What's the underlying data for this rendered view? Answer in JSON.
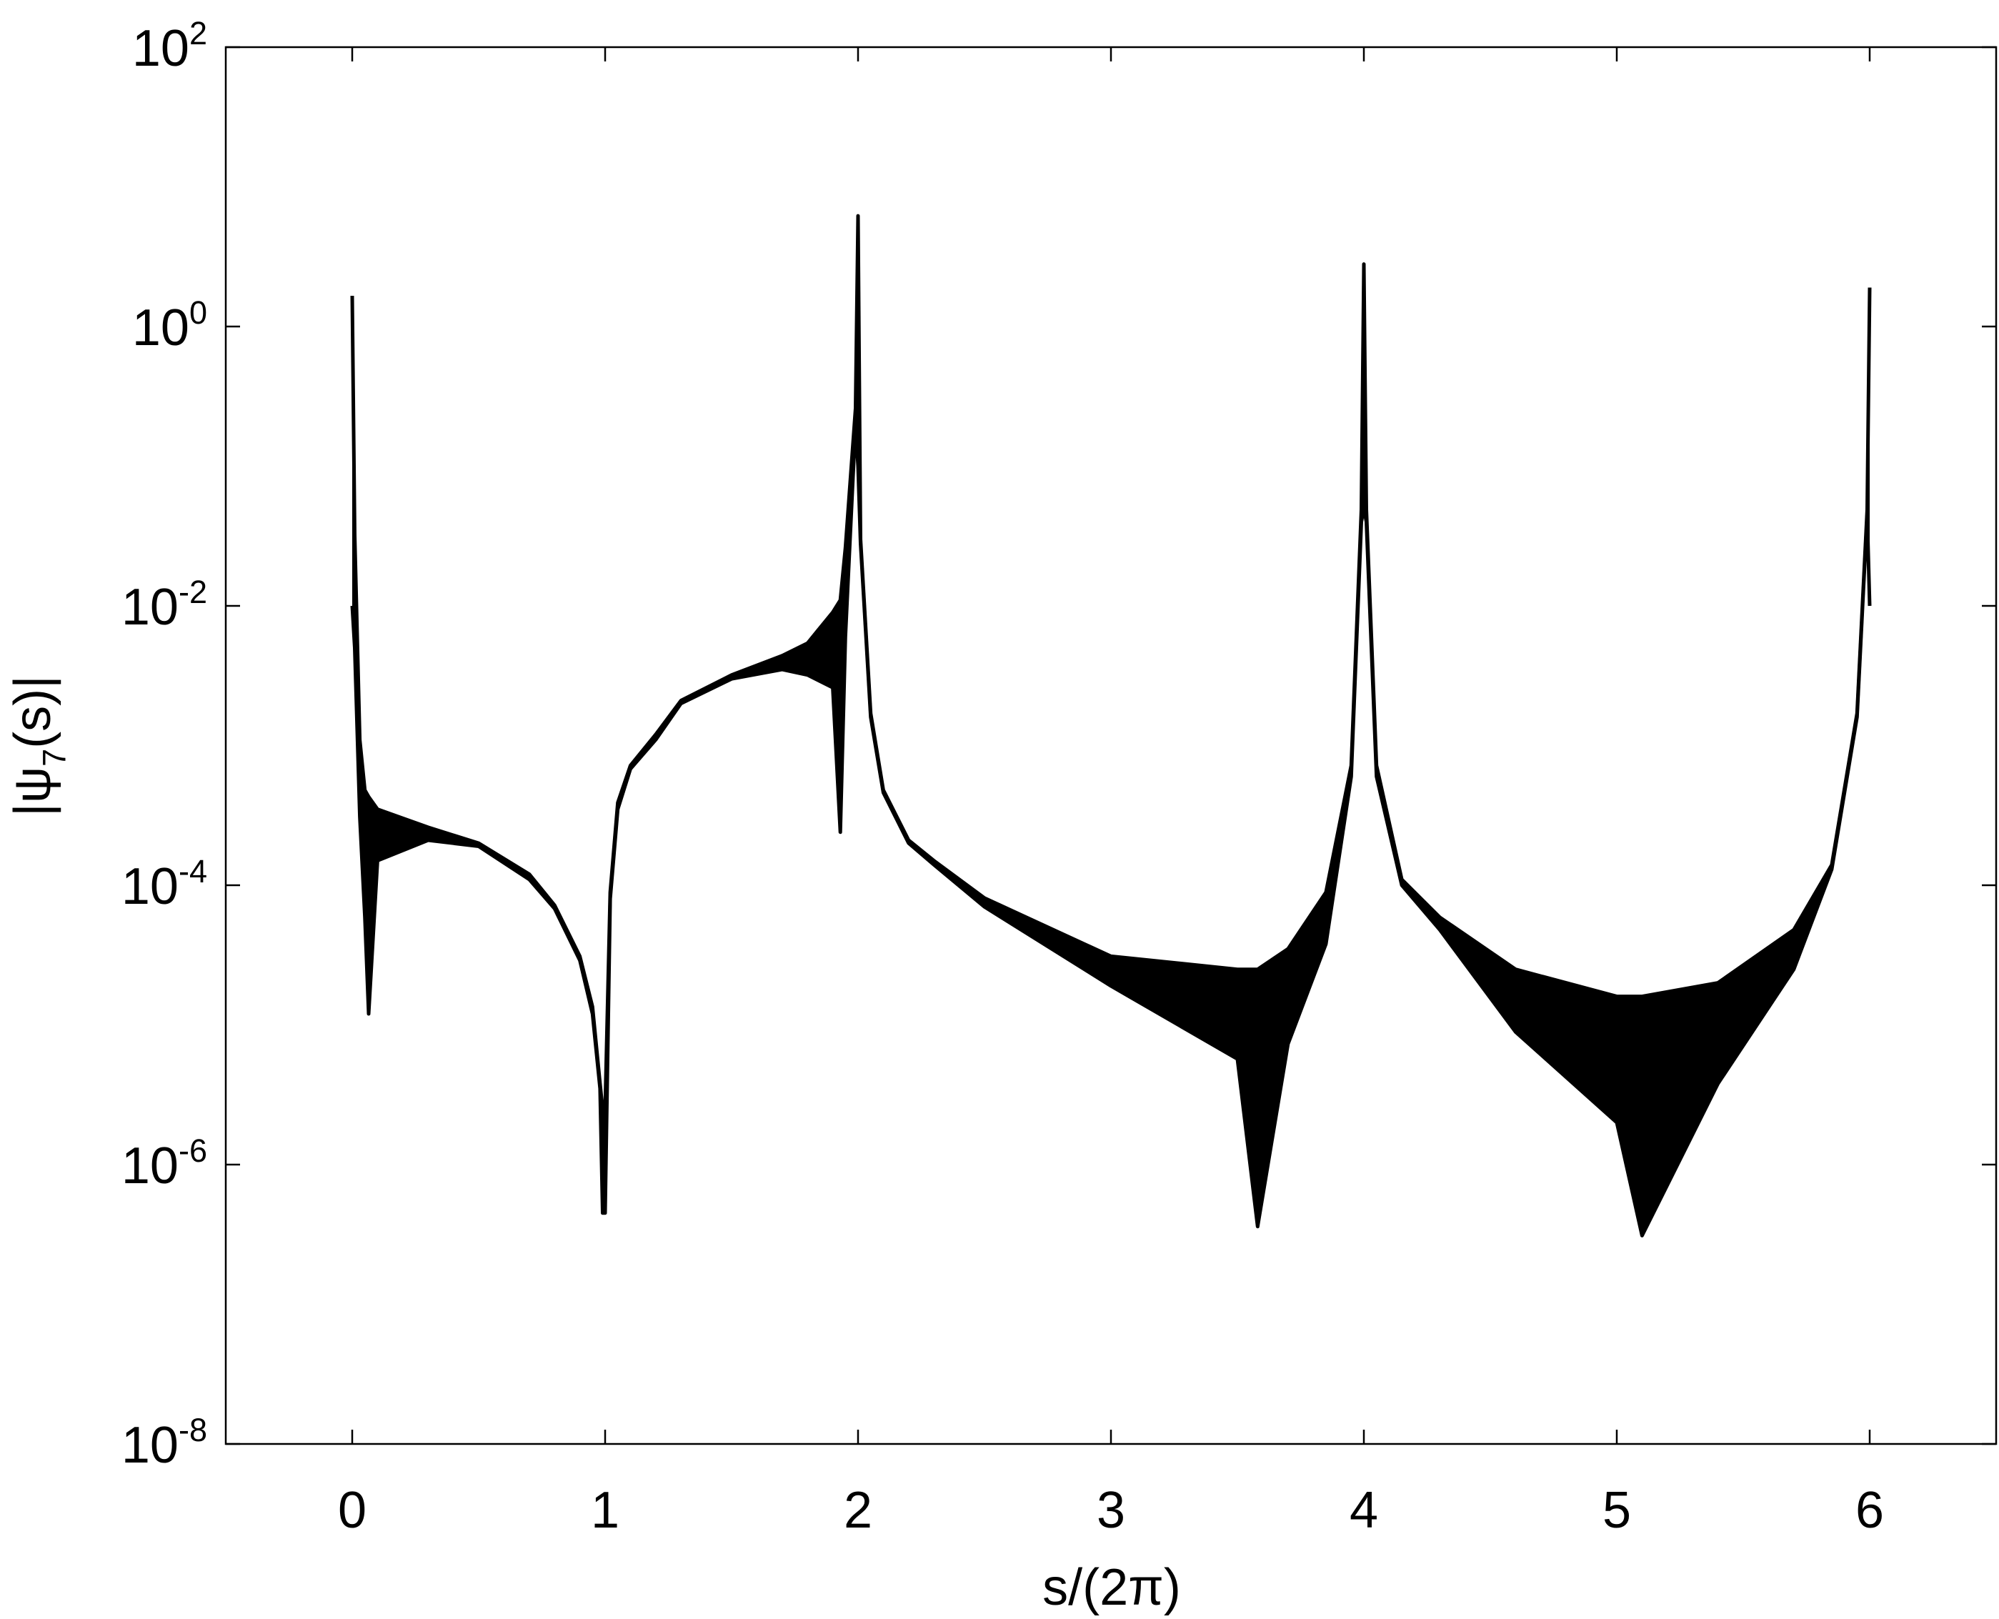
{
  "chart_data": {
    "type": "band",
    "xlabel": "s/(2π)",
    "ylabel": "|ψ_7(s)|",
    "xlim": [
      -0.5,
      6.5
    ],
    "xticks": [
      0,
      1,
      2,
      3,
      4,
      5,
      6
    ],
    "ylim": [
      1e-08,
      100
    ],
    "log_y": true,
    "yticks": [
      {
        "value": 1e-08,
        "label": "10^-8"
      },
      {
        "value": 1e-06,
        "label": "10^-6"
      },
      {
        "value": 0.0001,
        "label": "10^-4"
      },
      {
        "value": 0.01,
        "label": "10^-2"
      },
      {
        "value": 1,
        "label": "10^0"
      },
      {
        "value": 100,
        "label": "10^2"
      }
    ],
    "x": [
      0,
      0.01,
      0.03,
      0.05,
      0.065,
      0.1,
      0.3,
      0.5,
      0.7,
      0.8,
      0.9,
      0.95,
      0.98,
      0.99,
      1.0,
      1.02,
      1.05,
      1.1,
      1.2,
      1.3,
      1.5,
      1.7,
      1.8,
      1.9,
      1.93,
      1.95,
      1.99,
      2.0,
      2.01,
      2.05,
      2.1,
      2.2,
      2.3,
      2.5,
      3.0,
      3.5,
      3.58,
      3.7,
      3.85,
      3.95,
      3.99,
      4.0,
      4.01,
      4.05,
      4.15,
      4.3,
      4.6,
      5.0,
      5.1,
      5.4,
      5.7,
      5.85,
      5.95,
      5.99,
      6.0
    ],
    "series": [
      {
        "color": "#000000",
        "values": [
          1.66,
          0.032,
          0.0011,
          0.00048,
          0.00043,
          0.00035,
          0.00026,
          0.0002,
          0.00012,
          7.2e-05,
          3.1e-05,
          1.35e-05,
          3.8e-06,
          2.5e-06,
          2.5e-06,
          8.9e-05,
          0.00039,
          0.00072,
          0.0012,
          0.0021,
          0.0032,
          0.0044,
          0.0054,
          0.009,
          0.011,
          0.026,
          0.26,
          6.2,
          0.03,
          0.0017,
          0.00048,
          0.00021,
          0.00015,
          8.1e-05,
          3.1e-05,
          2.5e-05,
          2.5e-05,
          3.5e-05,
          8.9e-05,
          0.00072,
          0.049,
          2.8,
          0.049,
          0.00072,
          0.00011,
          5.9e-05,
          2.5e-05,
          1.6e-05,
          1.6e-05,
          2e-05,
          4.8e-05,
          0.00014,
          0.0017,
          0.049,
          1.9
        ]
      },
      {
        "color": "#000000",
        "values": [
          0.01,
          0.005,
          0.00031,
          5.9e-05,
          1.2e-05,
          0.00015,
          0.00021,
          0.00019,
          0.00011,
          6.8e-05,
          2.9e-05,
          1.2e-05,
          3.5e-06,
          4.5e-07,
          4.5e-07,
          8e-05,
          0.00035,
          0.00068,
          0.0011,
          0.002,
          0.003,
          0.0035,
          0.0032,
          0.0026,
          0.00024,
          0.006,
          0.2,
          0.1,
          0.028,
          0.0016,
          0.00046,
          0.0002,
          0.00014,
          7e-05,
          1.9e-05,
          5.7e-06,
          3.6e-07,
          7.3e-06,
          3.8e-05,
          0.0006,
          0.04,
          0.05,
          0.04,
          0.0006,
          0.0001,
          4.8e-05,
          8.9e-06,
          2e-06,
          3.1e-07,
          3.8e-06,
          2.5e-05,
          0.00013,
          0.0016,
          0.045,
          0.01
        ]
      }
    ]
  }
}
